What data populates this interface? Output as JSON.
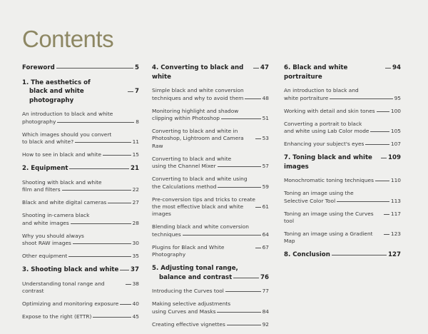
{
  "title": "Contents",
  "colors": {
    "title": "#8d8763",
    "background": "#efefed"
  },
  "columns": [
    [
      {
        "type": "chapter",
        "lines": [
          "Foreword"
        ],
        "page": "5"
      },
      {
        "type": "chapter",
        "lines": [
          "1. The aesthetics of",
          "black and white photography"
        ],
        "page": "7"
      },
      {
        "type": "entry",
        "lines": [
          "An introduction to black and white",
          "photography"
        ],
        "page": "8"
      },
      {
        "type": "entry",
        "lines": [
          "Which images should you convert",
          "to black and white?"
        ],
        "page": "11"
      },
      {
        "type": "entry",
        "lines": [
          "How to see in black and white"
        ],
        "page": "15"
      },
      {
        "type": "chapter",
        "lines": [
          "2. Equipment"
        ],
        "page": "21"
      },
      {
        "type": "entry",
        "lines": [
          "Shooting with black and white",
          "film and filters"
        ],
        "page": "22"
      },
      {
        "type": "entry",
        "lines": [
          "Black and white digital cameras"
        ],
        "page": "27"
      },
      {
        "type": "entry",
        "lines": [
          "Shooting in-camera black",
          "and white images"
        ],
        "page": "28"
      },
      {
        "type": "entry",
        "lines": [
          "Why you should always",
          "shoot RAW images"
        ],
        "page": "30"
      },
      {
        "type": "entry",
        "lines": [
          "Other equipment"
        ],
        "page": "35"
      },
      {
        "type": "chapter",
        "lines": [
          "3. Shooting black and white"
        ],
        "page": "37"
      },
      {
        "type": "entry",
        "lines": [
          "Understanding tonal range and contrast"
        ],
        "page": "38"
      },
      {
        "type": "entry",
        "lines": [
          "Optimizing and monitoring exposure"
        ],
        "page": "40"
      },
      {
        "type": "entry",
        "lines": [
          "Expose to the right (ETTR)"
        ],
        "page": "45"
      }
    ],
    [
      {
        "type": "chapter",
        "lines": [
          "4. Converting to black and white"
        ],
        "page": "47"
      },
      {
        "type": "entry",
        "lines": [
          "Simple black and white conversion",
          "techniques and why to avoid them"
        ],
        "page": "48"
      },
      {
        "type": "entry",
        "lines": [
          "Monitoring highlight and shadow",
          "clipping within Photoshop"
        ],
        "page": "51"
      },
      {
        "type": "entry",
        "lines": [
          "Converting to black and white in",
          "Photoshop, Lightroom and Camera Raw"
        ],
        "page": "53"
      },
      {
        "type": "entry",
        "lines": [
          "Converting to black and white",
          "using the Channel Mixer"
        ],
        "page": "57"
      },
      {
        "type": "entry",
        "lines": [
          "Converting to black and white using",
          "the Calculations method"
        ],
        "page": "59"
      },
      {
        "type": "entry",
        "lines": [
          "Pre-conversion tips and tricks to create",
          "the most effective black and white images"
        ],
        "page": "61"
      },
      {
        "type": "entry",
        "lines": [
          "Blending black and white conversion",
          "techniques"
        ],
        "page": "64"
      },
      {
        "type": "entry",
        "lines": [
          "Plugins for Black and White Photography"
        ],
        "page": "67"
      },
      {
        "type": "chapter",
        "lines": [
          "5. Adjusting tonal range,",
          "balance and contrast"
        ],
        "page": "76"
      },
      {
        "type": "entry",
        "lines": [
          "Introducing the Curves tool"
        ],
        "page": "77"
      },
      {
        "type": "entry",
        "lines": [
          "Making selective adjustments",
          "using Curves and Masks"
        ],
        "page": "84"
      },
      {
        "type": "entry",
        "lines": [
          "Creating effective vignettes"
        ],
        "page": "92"
      }
    ],
    [
      {
        "type": "chapter",
        "lines": [
          "6. Black and white portraiture"
        ],
        "page": "94"
      },
      {
        "type": "entry",
        "lines": [
          "An introduction to black and",
          "white portraiture"
        ],
        "page": "95"
      },
      {
        "type": "entry",
        "lines": [
          "Working with detail and skin tones"
        ],
        "page": "100"
      },
      {
        "type": "entry",
        "lines": [
          "Converting a portrait to black",
          "and white using Lab Color mode"
        ],
        "page": "105"
      },
      {
        "type": "entry",
        "lines": [
          "Enhancing your subject's eyes"
        ],
        "page": "107"
      },
      {
        "type": "chapter",
        "lines": [
          "7. Toning black and white images"
        ],
        "page": "109"
      },
      {
        "type": "entry",
        "lines": [
          "Monochromatic toning techniques"
        ],
        "page": "110"
      },
      {
        "type": "entry",
        "lines": [
          "Toning an image using the",
          "Selective Color Tool"
        ],
        "page": "113"
      },
      {
        "type": "entry",
        "lines": [
          "Toning an image using the Curves tool"
        ],
        "page": "117"
      },
      {
        "type": "entry",
        "lines": [
          "Toning an image using a Gradient Map"
        ],
        "page": "123"
      },
      {
        "type": "chapter",
        "lines": [
          "8. Conclusion"
        ],
        "page": "127"
      }
    ]
  ]
}
